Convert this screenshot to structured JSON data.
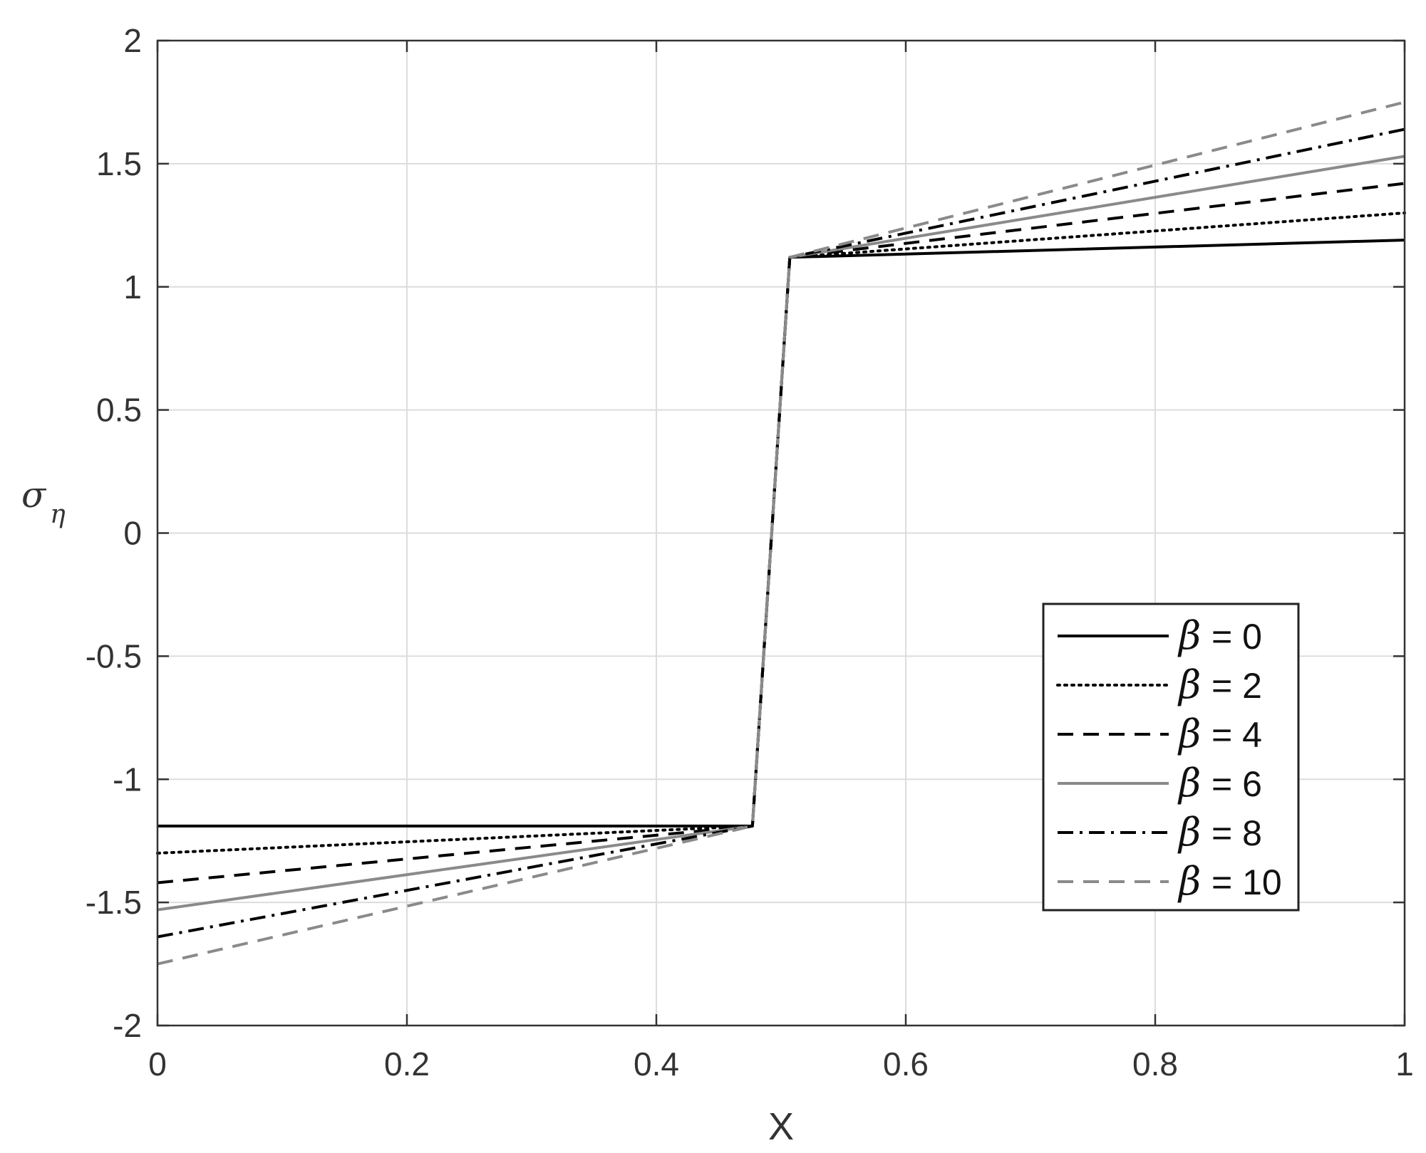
{
  "chart_data": {
    "type": "line",
    "xlabel": "X",
    "ylabel": "σ",
    "ylabel_sub": "η",
    "xlim": [
      0,
      1
    ],
    "ylim": [
      -2,
      2
    ],
    "x_ticks": [
      0,
      0.2,
      0.4,
      0.6,
      0.8,
      1
    ],
    "x_tick_labels": [
      "0",
      "0.2",
      "0.4",
      "0.6",
      "0.8",
      "1"
    ],
    "y_ticks": [
      -2,
      -1.5,
      -1,
      -0.5,
      0,
      0.5,
      1,
      1.5,
      2
    ],
    "y_tick_labels": [
      "-2",
      "-1.5",
      "-1",
      "-0.5",
      "0",
      "0.5",
      "1",
      "1.5",
      "2"
    ],
    "grid": true,
    "legend_position": "lower-right",
    "series": [
      {
        "name": "β = 0",
        "beta_symbol": "β",
        "beta_value": "= 0",
        "color": "#000000",
        "dash": "solid",
        "x": [
          0,
          0.477,
          0.507,
          1
        ],
        "y": [
          -1.19,
          -1.19,
          1.12,
          1.19
        ]
      },
      {
        "name": "β = 2",
        "beta_symbol": "β",
        "beta_value": "= 2",
        "color": "#000000",
        "dash": "dotted",
        "x": [
          0,
          0.477,
          0.507,
          1
        ],
        "y": [
          -1.3,
          -1.19,
          1.12,
          1.3
        ]
      },
      {
        "name": "β = 4",
        "beta_symbol": "β",
        "beta_value": "= 4",
        "color": "#000000",
        "dash": "dashed",
        "x": [
          0,
          0.477,
          0.507,
          1
        ],
        "y": [
          -1.42,
          -1.19,
          1.12,
          1.42
        ]
      },
      {
        "name": "β = 6",
        "beta_symbol": "β",
        "beta_value": "= 6",
        "color": "#8a8a8a",
        "dash": "solid",
        "x": [
          0,
          0.477,
          0.507,
          1
        ],
        "y": [
          -1.53,
          -1.19,
          1.12,
          1.53
        ]
      },
      {
        "name": "β = 8",
        "beta_symbol": "β",
        "beta_value": "= 8",
        "color": "#000000",
        "dash": "dashdot",
        "x": [
          0,
          0.477,
          0.507,
          1
        ],
        "y": [
          -1.64,
          -1.19,
          1.12,
          1.64
        ]
      },
      {
        "name": "β = 10",
        "beta_symbol": "β",
        "beta_value": "= 10",
        "color": "#8a8a8a",
        "dash": "dashed",
        "x": [
          0,
          0.477,
          0.507,
          1
        ],
        "y": [
          -1.75,
          -1.19,
          1.12,
          1.75
        ]
      }
    ]
  }
}
